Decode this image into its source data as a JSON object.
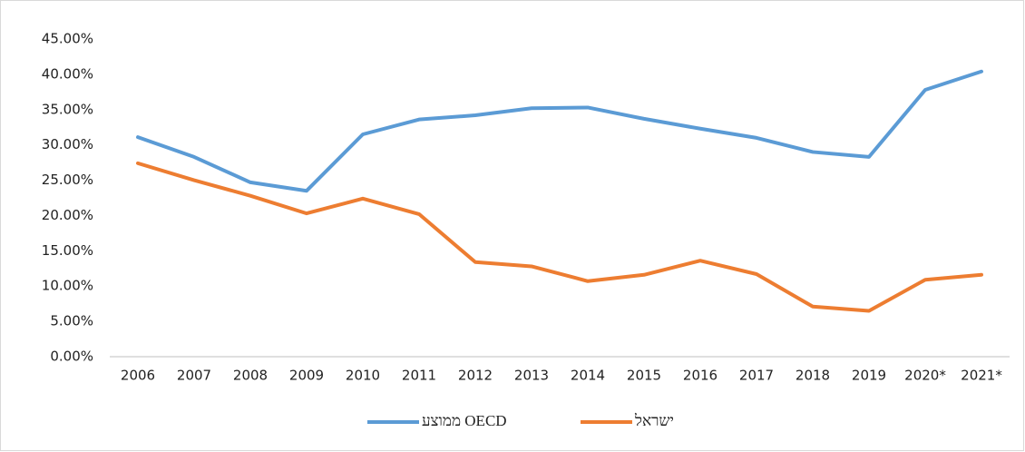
{
  "chart_data": {
    "type": "line",
    "categories": [
      "2006",
      "2007",
      "2008",
      "2009",
      "2010",
      "2011",
      "2012",
      "2013",
      "2014",
      "2015",
      "2016",
      "2017",
      "2018",
      "2019",
      "2020*",
      "2021*"
    ],
    "series": [
      {
        "name": "ממוצע OECD",
        "color": "#5b9bd5",
        "values": [
          31.1,
          28.3,
          24.7,
          23.5,
          31.5,
          33.6,
          34.2,
          35.2,
          35.3,
          33.7,
          32.3,
          31.0,
          29.0,
          28.3,
          37.8,
          40.4
        ]
      },
      {
        "name": "ישראל",
        "color": "#ed7d31",
        "values": [
          27.4,
          25.0,
          22.8,
          20.3,
          22.4,
          20.2,
          13.4,
          12.8,
          10.7,
          11.6,
          13.6,
          11.7,
          7.1,
          6.5,
          10.9,
          11.6
        ]
      }
    ],
    "ylim": [
      0,
      45
    ],
    "yticks": [
      {
        "value": 0,
        "label": "0.00%"
      },
      {
        "value": 5,
        "label": "5.00%"
      },
      {
        "value": 10,
        "label": "10.00%"
      },
      {
        "value": 15,
        "label": "15.00%"
      },
      {
        "value": 20,
        "label": "20.00%"
      },
      {
        "value": 25,
        "label": "25.00%"
      },
      {
        "value": 30,
        "label": "30.00%"
      },
      {
        "value": 35,
        "label": "35.00%"
      },
      {
        "value": 40,
        "label": "40.00%"
      },
      {
        "value": 45,
        "label": "45.00%"
      }
    ],
    "grid": false,
    "legend": "bottom"
  }
}
